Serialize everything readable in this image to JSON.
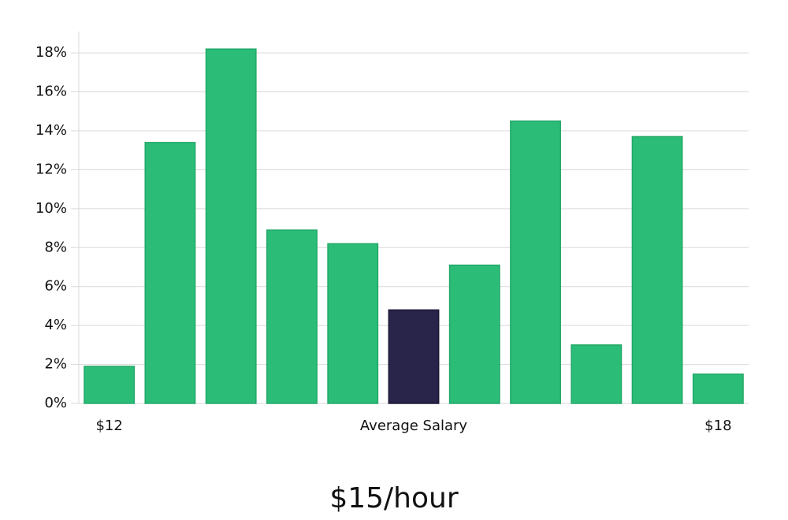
{
  "chart_data": {
    "type": "bar",
    "categories": [
      "$12",
      null,
      null,
      null,
      null,
      null,
      null,
      null,
      null,
      null,
      "$18"
    ],
    "values": [
      1.9,
      13.4,
      18.2,
      8.9,
      8.2,
      4.8,
      7.1,
      14.5,
      3.0,
      13.7,
      1.5
    ],
    "colors": [
      "#2bbd77",
      "#2bbd77",
      "#2bbd77",
      "#2bbd77",
      "#2bbd77",
      "#28244a",
      "#2bbd77",
      "#2bbd77",
      "#2bbd77",
      "#2bbd77",
      "#2bbd77"
    ],
    "x_label": "Average Salary",
    "ylim": [
      0,
      19.1
    ],
    "yticks": [
      {
        "value": 0,
        "label": "0%"
      },
      {
        "value": 2,
        "label": "2%"
      },
      {
        "value": 4,
        "label": "4%"
      },
      {
        "value": 6,
        "label": "6%"
      },
      {
        "value": 8,
        "label": "8%"
      },
      {
        "value": 10,
        "label": "10%"
      },
      {
        "value": 12,
        "label": "12%"
      },
      {
        "value": 14,
        "label": "14%"
      },
      {
        "value": 16,
        "label": "16%"
      },
      {
        "value": 18,
        "label": "18%"
      }
    ],
    "grid": true,
    "annotation": "$15/hour"
  }
}
